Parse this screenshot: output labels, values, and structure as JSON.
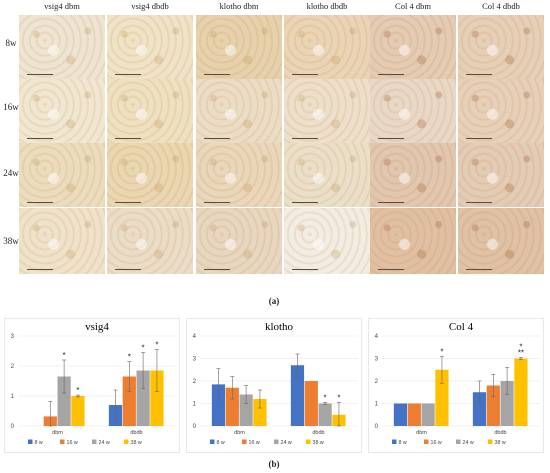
{
  "figure": {
    "columns": [
      "vsig4 dbm",
      "vsig4 dbdb",
      "klotho dbm",
      "klotho dbdb",
      "Col 4 dbm",
      "Col 4 dbdb"
    ],
    "rows": [
      "8w",
      "16w",
      "24w",
      "38w"
    ],
    "caption_a": "(a)",
    "caption_b": "(b)",
    "tile_colors": [
      [
        "#efe4cf",
        "#f0e2c4",
        "#e7d1ab",
        "#ead4b4",
        "#e4cbb1",
        "#e6cfb5"
      ],
      [
        "#f1e6cf",
        "#efe0c0",
        "#ecdcc4",
        "#eddfc9",
        "#ead8c6",
        "#e7d0b7"
      ],
      [
        "#ecdcbc",
        "#ead6af",
        "#ead6b8",
        "#ecdfc8",
        "#e2c6ad",
        "#e4cbb3"
      ],
      [
        "#efe2c8",
        "#ebdcc6",
        "#e9d6bf",
        "#f3ece0",
        "#e1c0a1",
        "#e0c1a4"
      ]
    ]
  },
  "chart_data": [
    {
      "type": "bar",
      "title": "vsig4",
      "categories": [
        "dbm",
        "dbdb"
      ],
      "ylim": [
        0,
        3
      ],
      "yticks": [
        "0",
        "1",
        "2",
        "3"
      ],
      "series": [
        {
          "name": "8 w",
          "color": "#4472c4",
          "values": [
            0.0,
            0.7
          ],
          "errors": [
            0.0,
            0.5
          ]
        },
        {
          "name": "16 w",
          "color": "#ed7d31",
          "values": [
            0.32,
            1.65
          ],
          "errors": [
            0.5,
            0.5
          ]
        },
        {
          "name": "24 w",
          "color": "#a5a5a5",
          "values": [
            1.65,
            1.85
          ],
          "errors": [
            0.55,
            0.6
          ]
        },
        {
          "name": "38 w",
          "color": "#ffc000",
          "values": [
            1.0,
            1.85
          ],
          "errors": [
            0.03,
            0.7
          ]
        }
      ],
      "annotations": [
        {
          "category": 0,
          "series": 2,
          "text": "*"
        },
        {
          "category": 0,
          "series": 3,
          "text": "*"
        },
        {
          "category": 1,
          "series": 1,
          "text": "*"
        },
        {
          "category": 1,
          "series": 2,
          "text": "*"
        },
        {
          "category": 1,
          "series": 3,
          "text": "*"
        }
      ]
    },
    {
      "type": "bar",
      "title": "klotho",
      "categories": [
        "dbm",
        "dbdb"
      ],
      "ylim": [
        0,
        4
      ],
      "yticks": [
        "0",
        "1",
        "2",
        "3",
        "4"
      ],
      "series": [
        {
          "name": "8 w",
          "color": "#4472c4",
          "values": [
            1.85,
            2.7
          ],
          "errors": [
            0.7,
            0.5
          ]
        },
        {
          "name": "16 w",
          "color": "#ed7d31",
          "values": [
            1.7,
            2.0
          ],
          "errors": [
            0.5,
            0.0
          ]
        },
        {
          "name": "24 w",
          "color": "#a5a5a5",
          "values": [
            1.4,
            1.0
          ],
          "errors": [
            0.4,
            0.05
          ]
        },
        {
          "name": "38 w",
          "color": "#ffc000",
          "values": [
            1.2,
            0.5
          ],
          "errors": [
            0.4,
            0.55
          ]
        }
      ],
      "annotations": [
        {
          "category": 1,
          "series": 2,
          "text": "*"
        },
        {
          "category": 1,
          "series": 3,
          "text": "*"
        }
      ]
    },
    {
      "type": "bar",
      "title": "Col 4",
      "categories": [
        "dbm",
        "dbdb"
      ],
      "ylim": [
        0,
        4
      ],
      "yticks": [
        "0",
        "1",
        "2",
        "3",
        "4"
      ],
      "series": [
        {
          "name": "8 w",
          "color": "#4472c4",
          "values": [
            1.0,
            1.5
          ],
          "errors": [
            0.0,
            0.5
          ]
        },
        {
          "name": "16 w",
          "color": "#ed7d31",
          "values": [
            1.0,
            1.8
          ],
          "errors": [
            0.0,
            0.5
          ]
        },
        {
          "name": "24 w",
          "color": "#a5a5a5",
          "values": [
            1.0,
            2.0
          ],
          "errors": [
            0.0,
            0.6
          ]
        },
        {
          "name": "38 w",
          "color": "#ffc000",
          "values": [
            2.5,
            3.0
          ],
          "errors": [
            0.6,
            0.05
          ]
        }
      ],
      "annotations": [
        {
          "category": 0,
          "series": 3,
          "text": "*"
        },
        {
          "category": 1,
          "series": 3,
          "text": "*\n**"
        }
      ]
    }
  ]
}
